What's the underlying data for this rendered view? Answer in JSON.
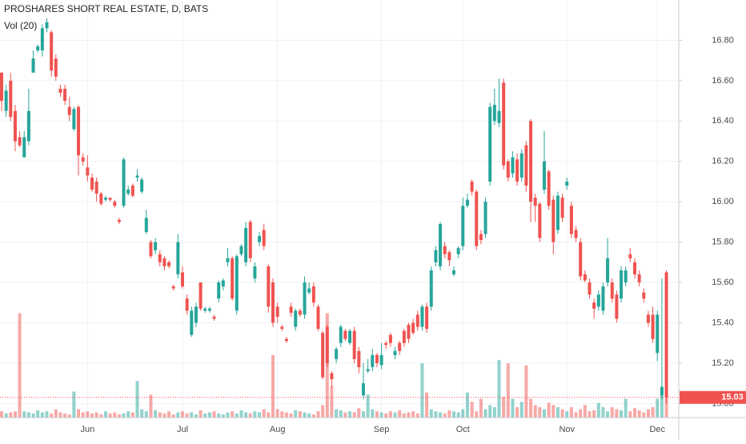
{
  "chart_data": {
    "type": "candlestick",
    "title": "PROSHARES SHORT REAL ESTATE, D, BATS",
    "volume_title": "Vol (20)",
    "up_color": "#26a69a",
    "down_color": "#ef5350",
    "grid": true,
    "ylim": [
      14.93,
      17.0
    ],
    "yticks": [
      {
        "value": 15.0,
        "label": "15.00"
      },
      {
        "value": 15.2,
        "label": "15.20"
      },
      {
        "value": 15.4,
        "label": "15.40"
      },
      {
        "value": 15.6,
        "label": "15.60"
      },
      {
        "value": 15.8,
        "label": "15.80"
      },
      {
        "value": 16.0,
        "label": "16.00"
      },
      {
        "value": 16.2,
        "label": "16.20"
      },
      {
        "value": 16.4,
        "label": "16.40"
      },
      {
        "value": 16.6,
        "label": "16.60"
      },
      {
        "value": 16.8,
        "label": "16.80"
      }
    ],
    "last_price": 15.03,
    "volume_ylim": [
      0,
      400
    ],
    "categories": [
      null,
      null,
      null,
      null,
      null,
      null,
      null,
      null,
      null,
      null,
      null,
      null,
      null,
      null,
      null,
      null,
      null,
      null,
      null,
      "Jun",
      null,
      null,
      null,
      null,
      null,
      null,
      null,
      null,
      null,
      null,
      null,
      null,
      null,
      null,
      null,
      null,
      null,
      null,
      null,
      null,
      "Jul",
      null,
      null,
      null,
      null,
      null,
      null,
      null,
      null,
      null,
      null,
      null,
      null,
      null,
      null,
      null,
      null,
      null,
      null,
      null,
      null,
      "Aug",
      null,
      null,
      null,
      null,
      null,
      null,
      null,
      null,
      null,
      null,
      null,
      null,
      null,
      null,
      null,
      null,
      null,
      null,
      null,
      null,
      null,
      null,
      "Sep",
      null,
      null,
      null,
      null,
      null,
      null,
      null,
      null,
      null,
      null,
      null,
      null,
      null,
      null,
      null,
      null,
      null,
      "Oct",
      null,
      null,
      null,
      null,
      null,
      null,
      null,
      null,
      null,
      null,
      null,
      null,
      null,
      null,
      null,
      null,
      null,
      null,
      null,
      null,
      null,
      null,
      "Nov",
      null,
      null,
      null,
      null,
      null,
      null,
      null,
      null,
      null,
      null,
      null,
      null,
      null,
      null,
      null,
      null,
      null,
      null,
      null,
      "Dec",
      null,
      null
    ],
    "ohlc": [
      [
        16.64,
        16.64,
        16.45,
        16.5
      ],
      [
        16.45,
        16.58,
        16.42,
        16.55
      ],
      [
        16.6,
        16.64,
        16.4,
        16.42
      ],
      [
        16.45,
        16.48,
        16.25,
        16.3
      ],
      [
        16.32,
        16.35,
        16.27,
        16.28
      ],
      [
        16.22,
        16.35,
        16.22,
        16.32
      ],
      [
        16.3,
        16.56,
        16.28,
        16.45
      ],
      [
        16.64,
        16.75,
        16.64,
        16.71
      ],
      [
        16.75,
        16.78,
        16.74,
        16.77
      ],
      [
        16.75,
        16.88,
        16.72,
        16.86
      ],
      [
        16.86,
        16.91,
        16.84,
        16.89
      ],
      [
        16.84,
        16.85,
        16.62,
        16.65
      ],
      [
        16.71,
        16.73,
        16.6,
        16.62
      ],
      [
        16.56,
        16.58,
        16.52,
        16.54
      ],
      [
        16.56,
        16.58,
        16.48,
        16.5
      ],
      [
        16.47,
        16.52,
        16.4,
        16.43
      ],
      [
        16.36,
        16.47,
        16.35,
        16.46
      ],
      [
        16.47,
        16.48,
        16.13,
        16.23
      ],
      [
        16.22,
        16.24,
        16.18,
        16.2
      ],
      [
        16.17,
        16.23,
        16.1,
        16.13
      ],
      [
        16.12,
        16.14,
        16.05,
        16.06
      ],
      [
        16.1,
        16.12,
        16.0,
        16.04
      ],
      [
        16.04,
        16.05,
        15.98,
        15.99
      ],
      [
        16.01,
        16.03,
        16.0,
        16.02
      ],
      [
        16.02,
        16.02,
        16.0,
        16.01
      ],
      [
        16.0,
        16.01,
        15.97,
        15.98
      ],
      [
        15.91,
        15.92,
        15.89,
        15.9
      ],
      [
        15.98,
        16.22,
        15.97,
        16.21
      ],
      [
        16.04,
        16.08,
        16.03,
        16.06
      ],
      [
        16.08,
        16.09,
        16.02,
        16.03
      ],
      [
        16.12,
        16.16,
        16.1,
        16.13
      ],
      [
        16.05,
        16.12,
        16.04,
        16.11
      ],
      [
        15.85,
        15.96,
        15.84,
        15.92
      ],
      [
        15.8,
        15.81,
        15.72,
        15.73
      ],
      [
        15.76,
        15.82,
        15.74,
        15.8
      ],
      [
        15.74,
        15.76,
        15.68,
        15.7
      ],
      [
        15.72,
        15.73,
        15.66,
        15.68
      ],
      [
        15.7,
        15.71,
        15.67,
        15.68
      ],
      [
        15.58,
        15.59,
        15.56,
        15.57
      ],
      [
        15.64,
        15.84,
        15.62,
        15.8
      ],
      [
        15.65,
        15.68,
        15.57,
        15.58
      ],
      [
        15.52,
        15.54,
        15.44,
        15.46
      ],
      [
        15.34,
        15.48,
        15.33,
        15.46
      ],
      [
        15.4,
        15.5,
        15.38,
        15.48
      ],
      [
        15.6,
        15.6,
        15.46,
        15.47
      ],
      [
        15.46,
        15.48,
        15.45,
        15.47
      ],
      [
        15.46,
        15.48,
        15.45,
        15.47
      ],
      [
        15.43,
        15.44,
        15.41,
        15.42
      ],
      [
        15.52,
        15.61,
        15.5,
        15.6
      ],
      [
        15.58,
        15.62,
        15.56,
        15.61
      ],
      [
        15.7,
        15.77,
        15.68,
        15.72
      ],
      [
        15.72,
        15.73,
        15.51,
        15.52
      ],
      [
        15.46,
        15.74,
        15.44,
        15.73
      ],
      [
        15.74,
        15.79,
        15.73,
        15.78
      ],
      [
        15.7,
        15.9,
        15.68,
        15.87
      ],
      [
        15.9,
        15.91,
        15.7,
        15.72
      ],
      [
        15.62,
        15.7,
        15.6,
        15.68
      ],
      [
        15.8,
        15.85,
        15.78,
        15.83
      ],
      [
        15.86,
        15.89,
        15.76,
        15.78
      ],
      [
        15.68,
        15.69,
        15.45,
        15.48
      ],
      [
        15.6,
        15.62,
        15.38,
        15.4
      ],
      [
        15.48,
        15.5,
        15.4,
        15.43
      ],
      [
        15.38,
        15.39,
        15.36,
        15.37
      ],
      [
        15.32,
        15.33,
        15.3,
        15.31
      ],
      [
        15.48,
        15.5,
        15.43,
        15.45
      ],
      [
        15.38,
        15.47,
        15.36,
        15.46
      ],
      [
        15.46,
        15.47,
        15.43,
        15.44
      ],
      [
        15.44,
        15.63,
        15.42,
        15.6
      ],
      [
        15.55,
        15.6,
        15.54,
        15.57
      ],
      [
        15.58,
        15.6,
        15.48,
        15.5
      ],
      [
        15.48,
        15.49,
        15.36,
        15.37
      ],
      [
        15.35,
        15.36,
        15.12,
        15.13
      ],
      [
        15.38,
        15.39,
        15.18,
        15.2
      ],
      [
        15.15,
        15.16,
        15.08,
        15.12
      ],
      [
        15.22,
        15.28,
        15.2,
        15.27
      ],
      [
        15.3,
        15.39,
        15.28,
        15.38
      ],
      [
        15.36,
        15.37,
        15.31,
        15.32
      ],
      [
        15.3,
        15.37,
        15.29,
        15.36
      ],
      [
        15.36,
        15.38,
        15.2,
        15.22
      ],
      [
        15.26,
        15.28,
        15.15,
        15.18
      ],
      [
        15.04,
        15.2,
        15.02,
        15.1
      ],
      [
        15.16,
        15.22,
        15.15,
        15.17
      ],
      [
        15.18,
        15.27,
        15.16,
        15.24
      ],
      [
        15.24,
        15.25,
        15.18,
        15.2
      ],
      [
        15.19,
        15.3,
        15.17,
        15.24
      ],
      [
        15.3,
        15.31,
        15.27,
        15.29
      ],
      [
        15.34,
        15.35,
        15.28,
        15.3
      ],
      [
        15.24,
        15.28,
        15.22,
        15.26
      ],
      [
        15.3,
        15.31,
        15.24,
        15.26
      ],
      [
        15.36,
        15.37,
        15.28,
        15.3
      ],
      [
        15.39,
        15.4,
        15.3,
        15.32
      ],
      [
        15.4,
        15.42,
        15.34,
        15.35
      ],
      [
        15.44,
        15.46,
        15.36,
        15.38
      ],
      [
        15.38,
        15.49,
        15.36,
        15.48
      ],
      [
        15.48,
        15.5,
        15.35,
        15.37
      ],
      [
        15.48,
        15.68,
        15.46,
        15.66
      ],
      [
        15.7,
        15.78,
        15.68,
        15.76
      ],
      [
        15.68,
        15.9,
        15.66,
        15.89
      ],
      [
        15.78,
        15.8,
        15.72,
        15.74
      ],
      [
        15.75,
        15.76,
        15.68,
        15.71
      ],
      [
        15.64,
        15.68,
        15.63,
        15.66
      ],
      [
        15.74,
        15.78,
        15.72,
        15.77
      ],
      [
        15.78,
        16.02,
        15.76,
        15.98
      ],
      [
        15.98,
        16.04,
        15.97,
        16.01
      ],
      [
        16.1,
        16.11,
        16.03,
        16.05
      ],
      [
        16.05,
        16.06,
        15.76,
        15.78
      ],
      [
        15.84,
        15.86,
        15.79,
        15.81
      ],
      [
        15.84,
        16.02,
        15.82,
        16.0
      ],
      [
        16.1,
        16.49,
        16.08,
        16.47
      ],
      [
        16.4,
        16.56,
        16.38,
        16.48
      ],
      [
        16.39,
        16.61,
        16.37,
        16.45
      ],
      [
        16.59,
        16.61,
        16.16,
        16.18
      ],
      [
        16.2,
        16.21,
        16.1,
        16.12
      ],
      [
        16.14,
        16.25,
        16.12,
        16.22
      ],
      [
        16.21,
        16.24,
        16.08,
        16.1
      ],
      [
        16.12,
        16.26,
        16.1,
        16.24
      ],
      [
        16.28,
        16.3,
        16.05,
        16.08
      ],
      [
        16.4,
        16.41,
        15.9,
        16.0
      ],
      [
        16.02,
        16.04,
        15.9,
        15.98
      ],
      [
        15.99,
        16.0,
        15.8,
        15.82
      ],
      [
        16.06,
        16.35,
        16.04,
        16.2
      ],
      [
        16.15,
        16.16,
        15.96,
        15.98
      ],
      [
        16.01,
        16.03,
        15.74,
        15.8
      ],
      [
        15.86,
        16.05,
        15.84,
        16.03
      ],
      [
        16.02,
        16.04,
        15.9,
        15.92
      ],
      [
        16.08,
        16.12,
        16.06,
        16.1
      ],
      [
        15.98,
        16.0,
        15.82,
        15.84
      ],
      [
        15.86,
        15.88,
        15.8,
        15.82
      ],
      [
        15.8,
        15.82,
        15.61,
        15.63
      ],
      [
        15.64,
        15.66,
        15.6,
        15.61
      ],
      [
        15.6,
        15.62,
        15.52,
        15.54
      ],
      [
        15.5,
        15.52,
        15.42,
        15.47
      ],
      [
        15.48,
        15.56,
        15.46,
        15.54
      ],
      [
        15.46,
        15.6,
        15.44,
        15.58
      ],
      [
        15.6,
        15.82,
        15.58,
        15.72
      ],
      [
        15.6,
        15.62,
        15.5,
        15.52
      ],
      [
        15.54,
        15.56,
        15.4,
        15.42
      ],
      [
        15.52,
        15.68,
        15.5,
        15.66
      ],
      [
        15.6,
        15.68,
        15.58,
        15.66
      ],
      [
        15.74,
        15.77,
        15.7,
        15.72
      ],
      [
        15.7,
        15.72,
        15.62,
        15.64
      ],
      [
        15.64,
        15.66,
        15.58,
        15.6
      ],
      [
        15.55,
        15.57,
        15.5,
        15.52
      ],
      [
        15.44,
        15.46,
        15.38,
        15.4
      ],
      [
        15.44,
        15.48,
        15.3,
        15.32
      ],
      [
        15.25,
        15.46,
        15.21,
        15.44
      ],
      [
        15.04,
        15.62,
        15.02,
        15.08
      ],
      [
        15.65,
        15.66,
        15.0,
        15.03
      ]
    ],
    "volume": [
      6,
      4,
      5,
      6,
      100,
      6,
      5,
      4,
      7,
      5,
      6,
      4,
      8,
      5,
      4,
      3,
      25,
      8,
      5,
      6,
      4,
      5,
      3,
      6,
      4,
      5,
      3,
      4,
      6,
      5,
      35,
      8,
      6,
      22,
      7,
      5,
      4,
      6,
      3,
      5,
      6,
      4,
      5,
      3,
      7,
      4,
      5,
      6,
      4,
      3,
      5,
      6,
      4,
      7,
      5,
      4,
      6,
      5,
      8,
      5,
      60,
      8,
      6,
      5,
      4,
      7,
      6,
      5,
      4,
      3,
      6,
      12,
      100,
      30,
      8,
      7,
      5,
      6,
      5,
      9,
      6,
      22,
      8,
      6,
      5,
      4,
      6,
      5,
      7,
      4,
      5,
      6,
      4,
      52,
      24,
      8,
      6,
      5,
      4,
      7,
      6,
      5,
      8,
      24,
      15,
      6,
      18,
      8,
      12,
      10,
      55,
      20,
      52,
      18,
      10,
      15,
      50,
      18,
      12,
      10,
      8,
      14,
      12,
      10,
      8,
      6,
      10,
      5,
      8,
      12,
      6,
      7,
      14,
      10,
      6,
      10,
      8,
      7,
      18,
      6,
      9,
      7,
      5,
      8,
      10,
      18,
      30,
      25
    ]
  }
}
